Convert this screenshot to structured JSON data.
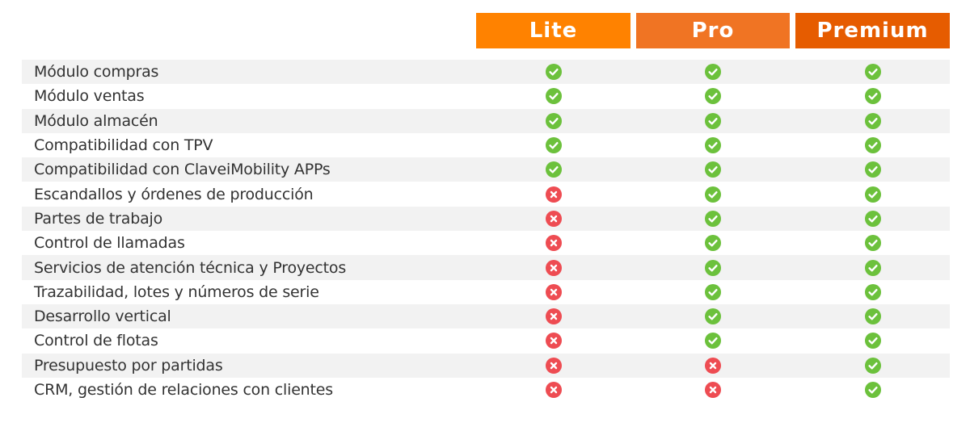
{
  "colors": {
    "lite": "#ff8200",
    "pro": "#f07423",
    "premium": "#e65c00",
    "check": "#6cc13c",
    "cross": "#ee4c52"
  },
  "plans": [
    {
      "name": "Lite"
    },
    {
      "name": "Pro"
    },
    {
      "name": "Premium"
    }
  ],
  "features": [
    {
      "label": "Módulo compras",
      "availability": [
        "check-icon",
        "check-icon",
        "check-icon"
      ]
    },
    {
      "label": "Módulo ventas",
      "availability": [
        "check-icon",
        "check-icon",
        "check-icon"
      ]
    },
    {
      "label": "Módulo almacén",
      "availability": [
        "check-icon",
        "check-icon",
        "check-icon"
      ]
    },
    {
      "label": "Compatibilidad con TPV",
      "availability": [
        "check-icon",
        "check-icon",
        "check-icon"
      ]
    },
    {
      "label": "Compatibilidad con ClaveiMobility APPs",
      "availability": [
        "check-icon",
        "check-icon",
        "check-icon"
      ]
    },
    {
      "label": "Escandallos y órdenes de producción",
      "availability": [
        "cross-icon",
        "check-icon",
        "check-icon"
      ]
    },
    {
      "label": "Partes de trabajo",
      "availability": [
        "cross-icon",
        "check-icon",
        "check-icon"
      ]
    },
    {
      "label": "Control de llamadas",
      "availability": [
        "cross-icon",
        "check-icon",
        "check-icon"
      ]
    },
    {
      "label": "Servicios de atención técnica y Proyectos",
      "availability": [
        "cross-icon",
        "check-icon",
        "check-icon"
      ]
    },
    {
      "label": "Trazabilidad, lotes y números de serie",
      "availability": [
        "cross-icon",
        "check-icon",
        "check-icon"
      ]
    },
    {
      "label": "Desarrollo vertical",
      "availability": [
        "cross-icon",
        "check-icon",
        "check-icon"
      ]
    },
    {
      "label": "Control de flotas",
      "availability": [
        "cross-icon",
        "check-icon",
        "check-icon"
      ]
    },
    {
      "label": "Presupuesto por partidas",
      "availability": [
        "cross-icon",
        "cross-icon",
        "check-icon"
      ]
    },
    {
      "label": "CRM, gestión de relaciones con clientes",
      "availability": [
        "cross-icon",
        "cross-icon",
        "check-icon"
      ]
    }
  ]
}
